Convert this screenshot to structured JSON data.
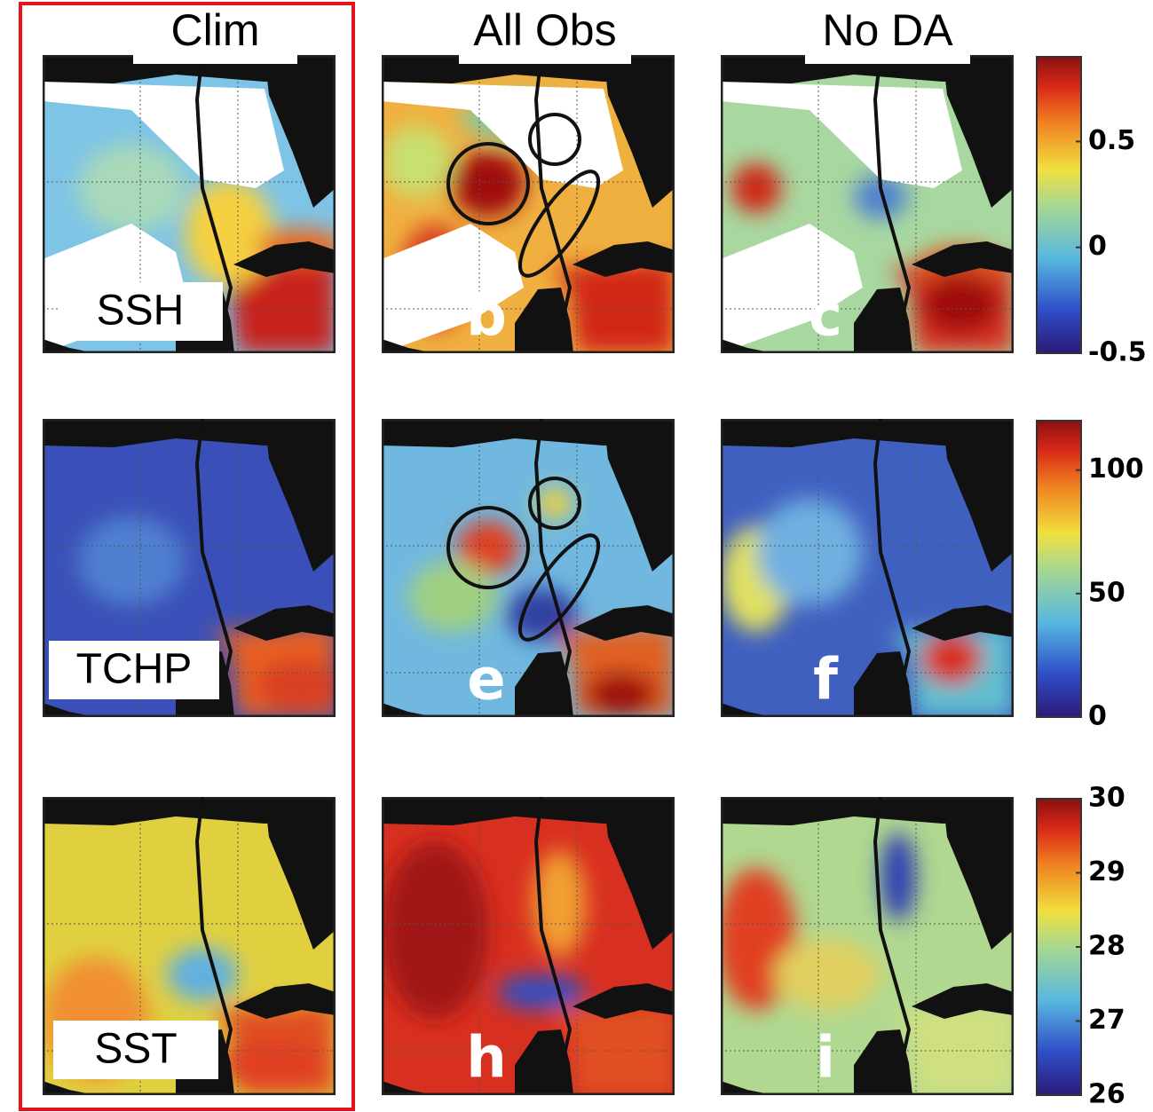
{
  "columns": [
    "Clim",
    "All Obs",
    "No DA"
  ],
  "rows": [
    {
      "label": "SSH",
      "letters": [
        "b",
        "c"
      ],
      "colorbar": {
        "lim": [
          -0.5,
          0.9
        ],
        "ticks": [
          -0.5,
          0,
          0.5
        ]
      }
    },
    {
      "label": "TCHP",
      "letters": [
        "e",
        "f"
      ],
      "colorbar": {
        "lim": [
          0,
          120
        ],
        "ticks": [
          0,
          50,
          100
        ]
      }
    },
    {
      "label": "SST",
      "letters": [
        "h",
        "i"
      ],
      "colorbar": {
        "lim": [
          26,
          30
        ],
        "ticks": [
          26,
          27,
          28,
          29,
          30
        ]
      }
    }
  ]
}
